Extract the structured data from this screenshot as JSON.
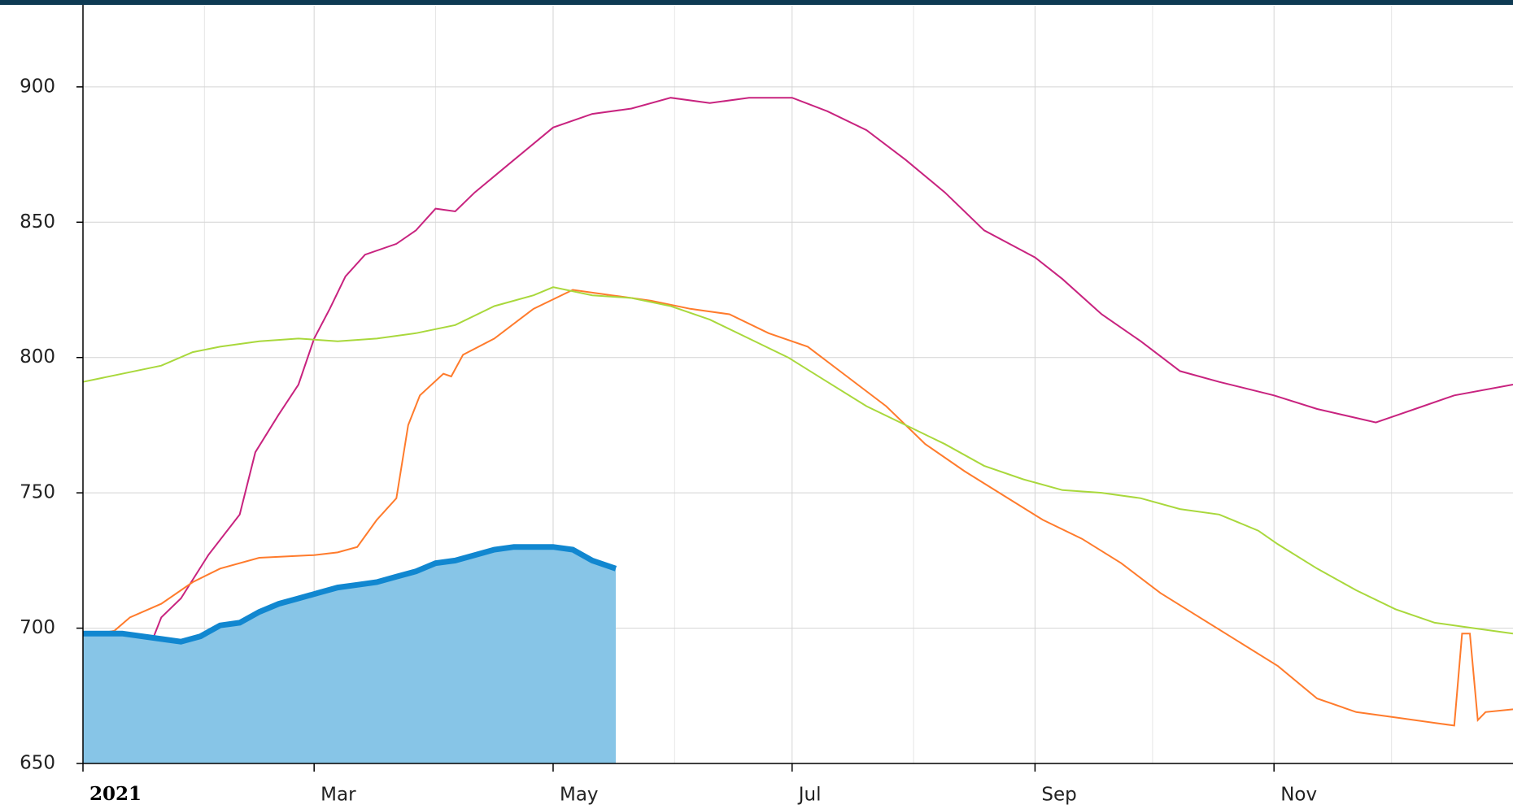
{
  "chart_data": {
    "type": "line",
    "xlim": [
      0,
      365
    ],
    "ylim": [
      650,
      930
    ],
    "xticks": [
      {
        "value": 0,
        "label": "2021"
      },
      {
        "value": 59,
        "label": "Mar"
      },
      {
        "value": 120,
        "label": "May"
      },
      {
        "value": 181,
        "label": "Jul"
      },
      {
        "value": 243,
        "label": "Sep"
      },
      {
        "value": 304,
        "label": "Nov"
      }
    ],
    "xminorticks": [
      31,
      90,
      151,
      212,
      273,
      334
    ],
    "yticks": [
      650,
      700,
      750,
      800,
      850,
      900
    ],
    "grid": true,
    "series": [
      {
        "color": "#c8237f",
        "x": [
          0,
          10,
          14,
          17,
          20,
          25,
          32,
          40,
          44,
          50,
          55,
          59,
          63,
          67,
          72,
          80,
          85,
          90,
          95,
          100,
          110,
          120,
          130,
          140,
          150,
          160,
          170,
          181,
          190,
          200,
          210,
          220,
          230,
          243,
          250,
          260,
          270,
          280,
          290,
          304,
          315,
          330,
          340,
          350,
          365
        ],
        "values": [
          670,
          672,
          677,
          693,
          704,
          711,
          727,
          742,
          765,
          779,
          790,
          807,
          818,
          830,
          838,
          842,
          847,
          855,
          854,
          861,
          873,
          885,
          890,
          892,
          896,
          894,
          896,
          896,
          891,
          884,
          873,
          861,
          847,
          837,
          829,
          816,
          806,
          795,
          791,
          786,
          781,
          776,
          781,
          786,
          790
        ]
      },
      {
        "color": "#ff7b2c",
        "x": [
          0,
          8,
          12,
          20,
          28,
          35,
          45,
          59,
          65,
          70,
          75,
          80,
          83,
          86,
          92,
          94,
          97,
          105,
          115,
          125,
          135,
          145,
          155,
          165,
          175,
          185,
          195,
          205,
          215,
          225,
          235,
          245,
          255,
          265,
          275,
          285,
          295,
          305,
          315,
          325,
          335,
          345,
          350,
          352,
          354,
          356,
          358,
          365
        ],
        "values": [
          697,
          699,
          704,
          709,
          717,
          722,
          726,
          727,
          728,
          730,
          740,
          748,
          775,
          786,
          794,
          793,
          801,
          807,
          818,
          825,
          823,
          821,
          818,
          816,
          809,
          804,
          793,
          782,
          768,
          758,
          749,
          740,
          733,
          724,
          713,
          704,
          695,
          686,
          674,
          669,
          667,
          665,
          664,
          698,
          698,
          666,
          669,
          670
        ]
      },
      {
        "color": "#a9d83c",
        "x": [
          0,
          10,
          20,
          28,
          35,
          45,
          55,
          65,
          75,
          85,
          95,
          105,
          115,
          120,
          130,
          140,
          150,
          160,
          170,
          180,
          190,
          200,
          210,
          220,
          230,
          240,
          250,
          260,
          270,
          280,
          290,
          300,
          305,
          315,
          325,
          335,
          345,
          355,
          365
        ],
        "values": [
          791,
          794,
          797,
          802,
          804,
          806,
          807,
          806,
          807,
          809,
          812,
          819,
          823,
          826,
          823,
          822,
          819,
          814,
          807,
          800,
          791,
          782,
          775,
          768,
          760,
          755,
          751,
          750,
          748,
          744,
          742,
          736,
          731,
          722,
          714,
          707,
          702,
          700,
          698
        ]
      },
      {
        "color": "#1187d0",
        "fill": "#87c5e7",
        "kind": "area",
        "x": [
          0,
          10,
          20,
          25,
          30,
          35,
          40,
          45,
          50,
          55,
          60,
          65,
          70,
          75,
          80,
          85,
          90,
          95,
          100,
          105,
          110,
          115,
          120,
          125,
          130,
          136
        ],
        "values": [
          698,
          698,
          696,
          695,
          697,
          701,
          702,
          706,
          709,
          711,
          713,
          715,
          716,
          717,
          719,
          721,
          724,
          725,
          727,
          729,
          730,
          730,
          730,
          729,
          725,
          722
        ]
      }
    ]
  }
}
